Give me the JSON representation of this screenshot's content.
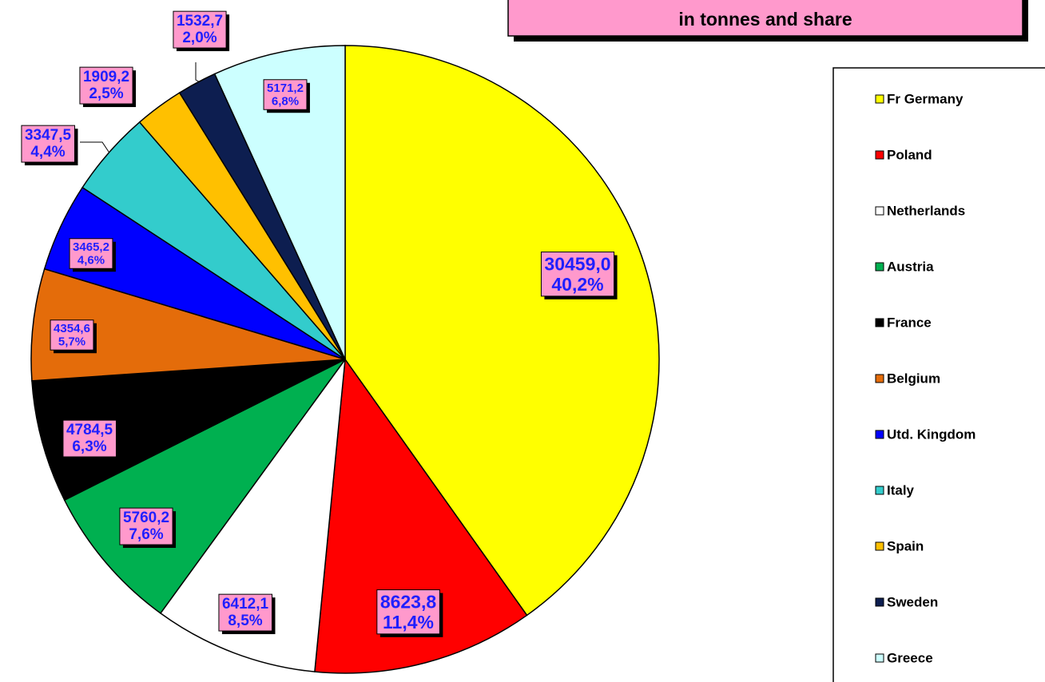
{
  "chart_data": {
    "type": "pie",
    "title": "in tonnes and share",
    "categories": [
      "Fr Germany",
      "Poland",
      "Netherlands",
      "Austria",
      "France",
      "Belgium",
      "Utd. Kingdom",
      "Italy",
      "Spain",
      "Sweden",
      "Greece"
    ],
    "values": [
      30459.0,
      8623.8,
      6412.1,
      5760.2,
      4784.5,
      4354.6,
      3465.2,
      3347.5,
      1909.2,
      1532.7,
      5171.2
    ],
    "value_labels": [
      "30459,0",
      "8623,8",
      "6412,1",
      "5760,2",
      "4784,5",
      "4354,6",
      "3465,2",
      "3347,5",
      "1909,2",
      "1532,7",
      "5171,2"
    ],
    "shares": [
      40.2,
      11.4,
      8.5,
      7.6,
      6.3,
      5.7,
      4.6,
      4.4,
      2.5,
      2.0,
      6.8
    ],
    "share_labels": [
      "40,2%",
      "11,4%",
      "8,5%",
      "7,6%",
      "6,3%",
      "5,7%",
      "4,6%",
      "4,4%",
      "2,5%",
      "2,0%",
      "6,8%"
    ],
    "colors": [
      "#ffff00",
      "#ff0000",
      "#ffffff",
      "#00b050",
      "#000000",
      "#e46c0a",
      "#0000ff",
      "#33cccc",
      "#ffc000",
      "#0d1e50",
      "#ccffff"
    ]
  }
}
